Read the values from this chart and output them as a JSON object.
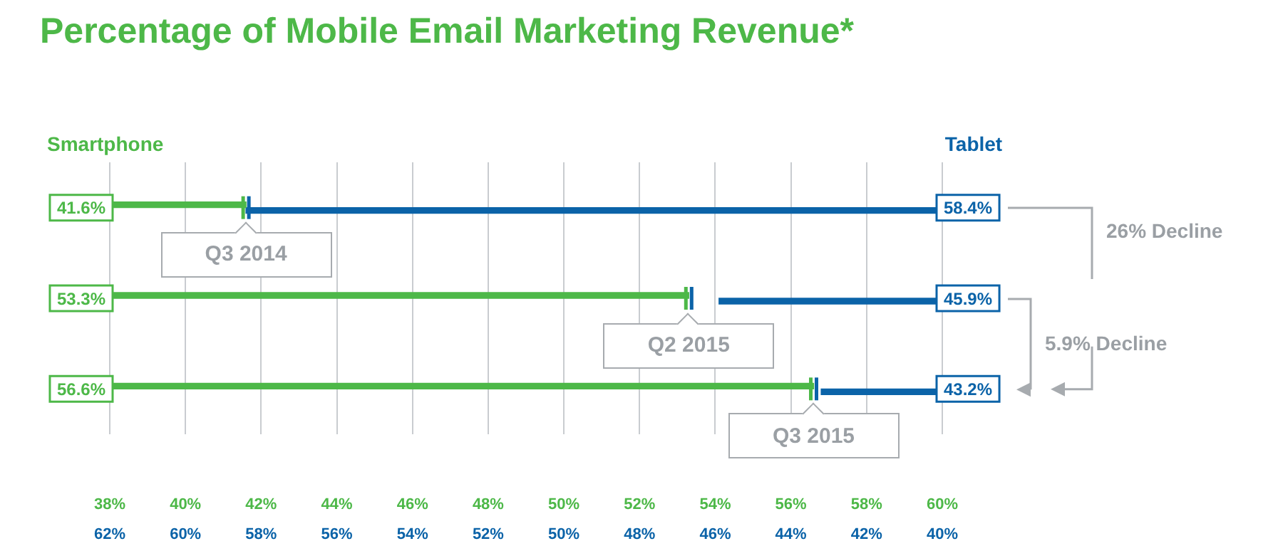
{
  "chart_data": {
    "type": "bar",
    "orientation": "horizontal",
    "title": "Percentage of Mobile Email Marketing Revenue*",
    "categories": [
      null,
      null,
      null
    ],
    "series": [
      {
        "name": "Smartphone",
        "color": "#4db848",
        "values": [
          41.6,
          53.3,
          56.6
        ],
        "value_labels": [
          "41.6%",
          "53.3%",
          "56.6%"
        ]
      },
      {
        "name": "Tablet",
        "color": "#0b63a8",
        "axis": "x2",
        "values": [
          58.4,
          45.9,
          43.2
        ],
        "value_labels": [
          "58.4%",
          "45.9%",
          "43.2%"
        ]
      }
    ],
    "xlim": [
      38,
      60
    ],
    "xticks": [
      {
        "value": 38,
        "label": "38%"
      },
      {
        "value": 40,
        "label": "40%"
      },
      {
        "value": 42,
        "label": "42%"
      },
      {
        "value": 44,
        "label": "44%"
      },
      {
        "value": 46,
        "label": "46%"
      },
      {
        "value": 48,
        "label": "48%"
      },
      {
        "value": 50,
        "label": "50%"
      },
      {
        "value": 52,
        "label": "52%"
      },
      {
        "value": 54,
        "label": "54%"
      },
      {
        "value": 56,
        "label": "56%"
      },
      {
        "value": 58,
        "label": "58%"
      },
      {
        "value": 60,
        "label": "60%"
      }
    ],
    "x2lim": [
      62,
      40
    ],
    "x2ticks": [
      {
        "value": 62,
        "label": "62%"
      },
      {
        "value": 60,
        "label": "60%"
      },
      {
        "value": 58,
        "label": "58%"
      },
      {
        "value": 56,
        "label": "56%"
      },
      {
        "value": 54,
        "label": "54%"
      },
      {
        "value": 52,
        "label": "52%"
      },
      {
        "value": 50,
        "label": "50%"
      },
      {
        "value": 48,
        "label": "48%"
      },
      {
        "value": 46,
        "label": "46%"
      },
      {
        "value": 44,
        "label": "44%"
      },
      {
        "value": 42,
        "label": "42%"
      },
      {
        "value": 40,
        "label": "40%"
      }
    ],
    "grid": "x",
    "legend": false,
    "annotations": [
      "26% Decline",
      "5.9% Decline",
      {
        "text": "Q3 2014",
        "x": 41.6
      },
      {
        "text": "Q2 2015",
        "x": 53.3
      },
      {
        "text": "Q3 2015",
        "x": 56.6
      }
    ]
  }
}
